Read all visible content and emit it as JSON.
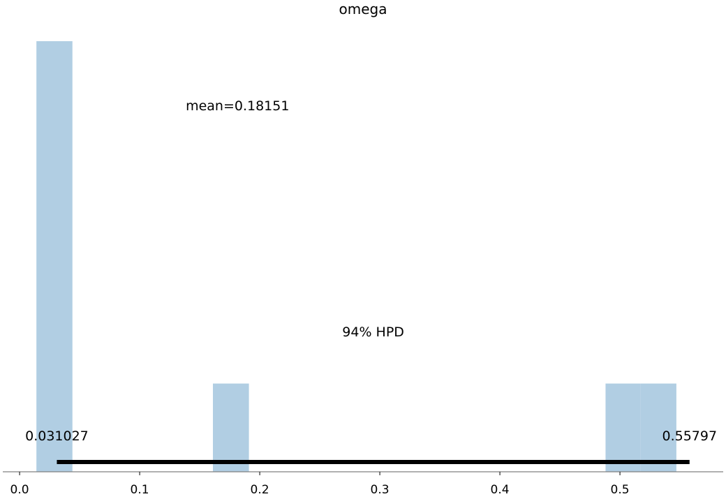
{
  "chart_data": {
    "type": "bar",
    "title": "omega",
    "xlabel": "",
    "ylabel": "",
    "xlim": [
      -0.014,
      0.586
    ],
    "ylim": [
      0,
      5.0
    ],
    "x_ticks": [
      0.0,
      0.1,
      0.2,
      0.3,
      0.4,
      0.5
    ],
    "x_tick_labels": [
      "0.0",
      "0.1",
      "0.2",
      "0.3",
      "0.4",
      "0.5"
    ],
    "bar_color": "#b1cee3",
    "bins": [
      {
        "x0": 0.014,
        "x1": 0.044,
        "value": 4.88
      },
      {
        "x0": 0.161,
        "x1": 0.191,
        "value": 1.0
      },
      {
        "x0": 0.488,
        "x1": 0.517,
        "value": 1.0
      },
      {
        "x0": 0.517,
        "x1": 0.547,
        "value": 1.0
      }
    ],
    "hpd": {
      "low": 0.031027,
      "high": 0.55797,
      "label": "94% HPD",
      "low_label": "0.031027",
      "high_label": "0.55797",
      "color": "#000000"
    },
    "mean": {
      "value": 0.18151,
      "label": "mean=0.18151"
    }
  }
}
